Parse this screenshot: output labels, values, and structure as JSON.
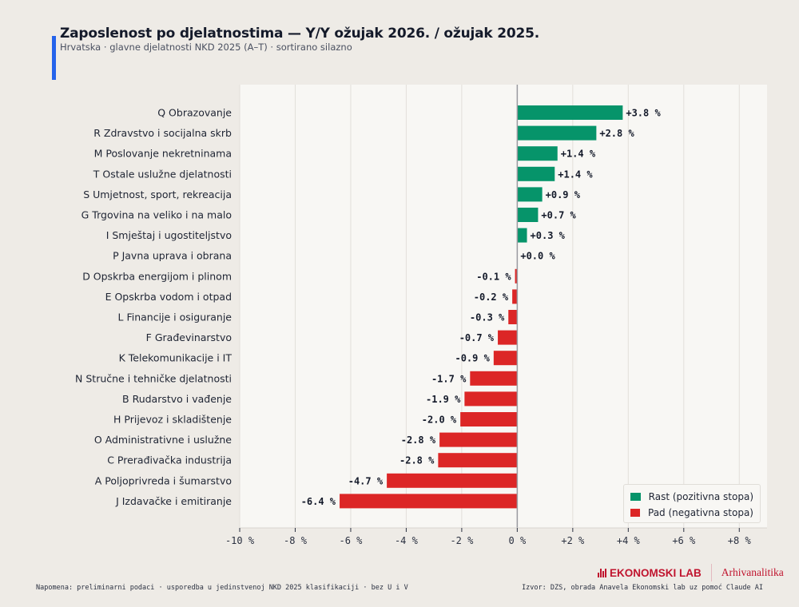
{
  "header": {
    "title": "Zaposlenost po djelatnostima — Y/Y ožujak 2026. / ožujak 2025.",
    "subtitle": "Hrvatska · glavne djelatnosti NKD 2025 (A–T) · sortirano silazno",
    "accent_color": "#2563eb"
  },
  "chart_data": {
    "type": "bar",
    "orientation": "horizontal",
    "title": "Zaposlenost po djelatnostima — Y/Y ožujak 2026. / ožujak 2025.",
    "subtitle": "Hrvatska · glavne djelatnosti NKD 2025 (A–T) · sortirano silazno",
    "xlabel": "",
    "ylabel": "",
    "unit": "%",
    "xlim": [
      -10,
      9
    ],
    "xticks": [
      -10,
      -8,
      -6,
      -4,
      -2,
      0,
      2,
      4,
      6,
      8
    ],
    "xtick_labels": [
      "-10 %",
      "-8 %",
      "-6 %",
      "-4 %",
      "-2 %",
      "0 %",
      "+2 %",
      "+4 %",
      "+6 %",
      "+8 %"
    ],
    "grid": "vertical",
    "categories": [
      "Q  Obrazovanje",
      "R  Zdravstvo i socijalna skrb",
      "M  Poslovanje nekretninama",
      "T  Ostale uslužne djelatnosti",
      "S  Umjetnost, sport, rekreacija",
      "G  Trgovina na veliko i na malo",
      "I  Smještaj i ugostiteljstvo",
      "P  Javna uprava i obrana",
      "D  Opskrba energijom i plinom",
      "E  Opskrba vodom i otpad",
      "L  Financije i osiguranje",
      "F  Građevinarstvo",
      "K  Telekomunikacije i IT",
      "N  Stručne i tehničke djelatnosti",
      "B  Rudarstvo i vađenje",
      "H  Prijevoz i skladištenje",
      "O  Administrativne i uslužne",
      "C  Prerađivačka industrija",
      "A  Poljoprivreda i šumarstvo",
      "J  Izdavačke i emitiranje"
    ],
    "values": [
      3.8,
      2.85,
      1.45,
      1.35,
      0.9,
      0.75,
      0.35,
      0.0,
      -0.08,
      -0.18,
      -0.32,
      -0.7,
      -0.85,
      -1.7,
      -1.9,
      -2.05,
      -2.8,
      -2.85,
      -4.7,
      -6.4
    ],
    "value_labels": [
      "+3.8 %",
      "+2.8 %",
      "+1.4 %",
      "+1.4 %",
      "+0.9 %",
      "+0.7 %",
      "+0.3 %",
      "+0.0 %",
      "-0.1 %",
      "-0.2 %",
      "-0.3 %",
      "-0.7 %",
      "-0.9 %",
      "-1.7 %",
      "-1.9 %",
      "-2.0 %",
      "-2.8 %",
      "-2.8 %",
      "-4.7 %",
      "-6.4 %"
    ],
    "colors": {
      "positive": "#06946a",
      "negative": "#dc2626"
    },
    "legend": {
      "placement": "bottom-right",
      "entries": [
        {
          "label": "Rast (pozitivna stopa)",
          "color": "#06946a"
        },
        {
          "label": "Pad (negativna stopa)",
          "color": "#dc2626"
        }
      ]
    }
  },
  "footer": {
    "note": "Napomena: preliminarni podaci · usporedba u jedinstvenoj NKD 2025 klasifikaciji · bez U i V",
    "source": "Izvor: DZS, obrada Anavela Ekonomski lab uz pomoć Claude AI",
    "brand_main": "EKONOMSKI LAB",
    "brand_sub": "Arhivanalitika",
    "brand_color": "#c0142e"
  }
}
